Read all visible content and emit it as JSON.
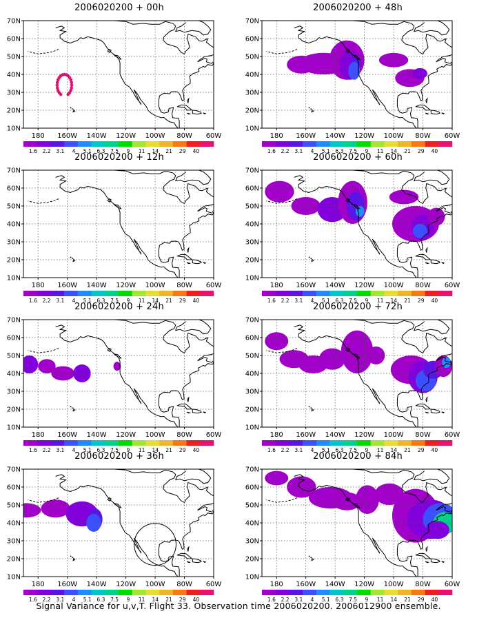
{
  "panels": [
    {
      "title": "2006020200 + 00h",
      "shaded": false
    },
    {
      "title": "2006020200 + 48h",
      "shaded": true
    },
    {
      "title": "2006020200 + 12h",
      "shaded": false
    },
    {
      "title": "2006020200 + 60h",
      "shaded": true
    },
    {
      "title": "2006020200 + 24h",
      "shaded": true
    },
    {
      "title": "2006020200 + 72h",
      "shaded": true
    },
    {
      "title": "2006020200 + 36h",
      "shaded": true
    },
    {
      "title": "2006020200 + 84h",
      "shaded": true
    }
  ],
  "axes": {
    "y_labels": [
      "70N",
      "60N",
      "50N",
      "40N",
      "30N",
      "20N",
      "10N"
    ],
    "x_labels": [
      "180",
      "160W",
      "140W",
      "120W",
      "100W",
      "80W",
      "60W"
    ]
  },
  "colorbar": {
    "labels": [
      "1.6",
      "2.2",
      "3.1",
      "4",
      "5.1",
      "6.3",
      "7.5",
      "9",
      "11",
      "14",
      "21",
      "29",
      "40"
    ],
    "colors": [
      "#a000c8",
      "#8200dc",
      "#5a14e6",
      "#3c50ff",
      "#1e8cff",
      "#00c8c8",
      "#00d28c",
      "#00dc00",
      "#a0e632",
      "#e6dc32",
      "#f0b428",
      "#fa7814",
      "#f01e1e",
      "#e6146e"
    ]
  },
  "caption": "Signal Variance for u,v,T. Flight 33. Observation time 2006020200. 2006012900 ensemble."
}
